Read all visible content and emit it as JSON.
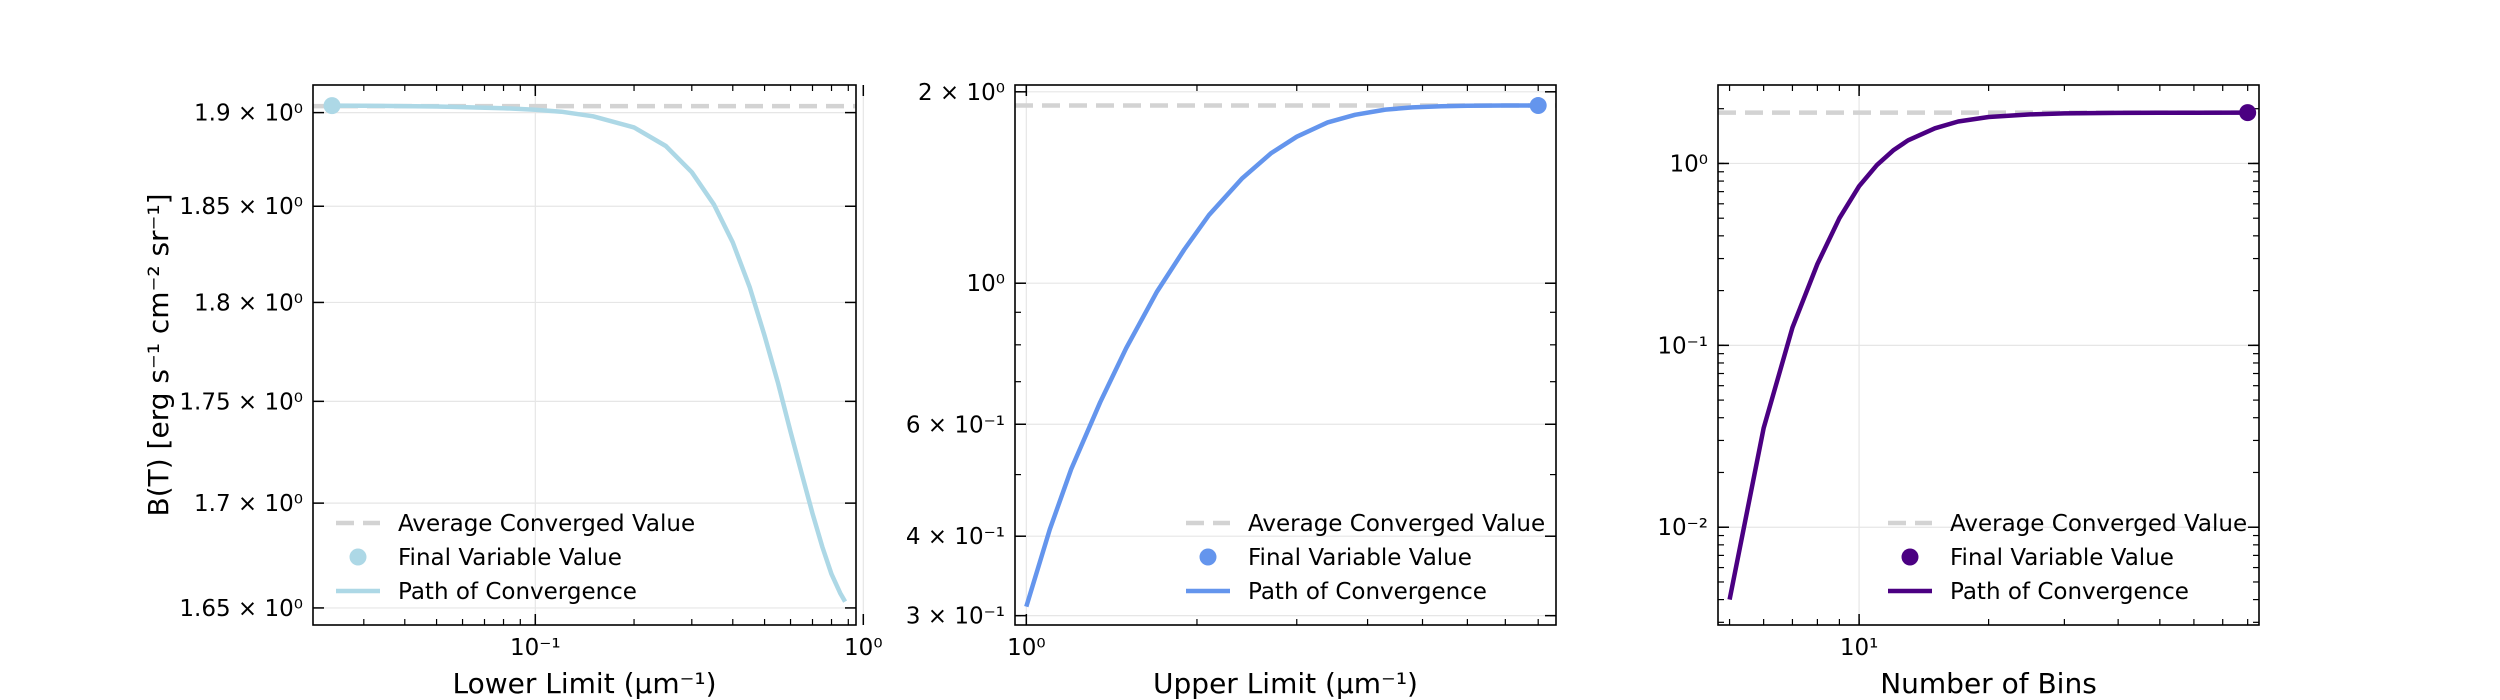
{
  "chart_data": [
    {
      "type": "line",
      "xlabel": "Lower Limit (μm⁻¹)",
      "ylabel": "B(T) [erg s⁻¹ cm⁻² sr⁻¹]",
      "xscale": "log",
      "yscale": "log",
      "xlim": [
        0.021,
        0.95
      ],
      "ylim": [
        1.642,
        1.915
      ],
      "grid": true,
      "legend_position": "bottom-left",
      "color": "#add8e6",
      "xticks": [
        {
          "value": 0.1,
          "label": "10⁻¹"
        },
        {
          "value": 1,
          "label": "10⁰"
        }
      ],
      "yticks": [
        {
          "value": 1.65,
          "label": "1.65 × 10⁰"
        },
        {
          "value": 1.7,
          "label": "1.7 × 10⁰"
        },
        {
          "value": 1.75,
          "label": "1.75 × 10⁰"
        },
        {
          "value": 1.8,
          "label": "1.8 × 10⁰"
        },
        {
          "value": 1.85,
          "label": "1.85 × 10⁰"
        },
        {
          "value": 1.9,
          "label": "1.9 × 10⁰"
        }
      ],
      "average_converged_value": 1.9035,
      "final_point": {
        "x": 0.024,
        "y": 1.9038
      },
      "series": [
        {
          "x": [
            0.024,
            0.03,
            0.04,
            0.05,
            0.06,
            0.08,
            0.1,
            0.12,
            0.15,
            0.2,
            0.25,
            0.3,
            0.35,
            0.4,
            0.45,
            0.5,
            0.55,
            0.6,
            0.65,
            0.7,
            0.75,
            0.8,
            0.85,
            0.88
          ],
          "y": [
            1.9038,
            1.9037,
            1.9035,
            1.9033,
            1.903,
            1.9024,
            1.9016,
            1.9005,
            1.898,
            1.892,
            1.882,
            1.868,
            1.851,
            1.831,
            1.808,
            1.783,
            1.759,
            1.735,
            1.714,
            1.695,
            1.679,
            1.666,
            1.657,
            1.653
          ]
        }
      ],
      "legend": [
        "Average Converged Value",
        "Final Variable Value",
        "Path of Convergence"
      ]
    },
    {
      "type": "line",
      "xlabel": "Upper Limit (μm⁻¹)",
      "ylabel": "",
      "xscale": "log",
      "yscale": "log",
      "xlim": [
        0.955,
        8.6
      ],
      "ylim": [
        0.29,
        2.05
      ],
      "grid": true,
      "legend_position": "bottom-right",
      "color": "#6495ed",
      "xticks": [
        {
          "value": 1,
          "label": "10⁰"
        }
      ],
      "yticks": [
        {
          "value": 0.3,
          "label": "3 × 10⁻¹"
        },
        {
          "value": 0.4,
          "label": "4 × 10⁻¹"
        },
        {
          "value": 0.6,
          "label": "6 × 10⁻¹"
        },
        {
          "value": 1,
          "label": "10⁰"
        },
        {
          "value": 2,
          "label": "2 × 10⁰"
        }
      ],
      "average_converged_value": 1.903,
      "final_point": {
        "x": 8.0,
        "y": 1.903
      },
      "series": [
        {
          "x": [
            1.0,
            1.1,
            1.2,
            1.35,
            1.5,
            1.7,
            1.9,
            2.1,
            2.4,
            2.7,
            3.0,
            3.4,
            3.8,
            4.3,
            4.8,
            5.4,
            6.0,
            7.0,
            8.0
          ],
          "y": [
            0.31,
            0.41,
            0.51,
            0.65,
            0.79,
            0.97,
            1.13,
            1.28,
            1.46,
            1.6,
            1.7,
            1.79,
            1.84,
            1.875,
            1.89,
            1.898,
            1.901,
            1.903,
            1.903
          ]
        }
      ],
      "legend": [
        "Average Converged Value",
        "Final Variable Value",
        "Path of Convergence"
      ]
    },
    {
      "type": "line",
      "xlabel": "Number of Bins",
      "ylabel": "",
      "xscale": "log",
      "yscale": "log",
      "xlim": [
        4.7,
        85
      ],
      "ylim": [
        0.0029,
        2.7
      ],
      "grid": true,
      "legend_position": "bottom-right",
      "color": "#4b0082",
      "xticks": [
        {
          "value": 10,
          "label": "10¹"
        }
      ],
      "yticks": [
        {
          "value": 0.01,
          "label": "10⁻²"
        },
        {
          "value": 0.1,
          "label": "10⁻¹"
        },
        {
          "value": 1,
          "label": "10⁰"
        }
      ],
      "average_converged_value": 1.903,
      "final_point": {
        "x": 80,
        "y": 1.903
      },
      "series": [
        {
          "x": [
            5,
            6,
            7,
            8,
            9,
            10,
            11,
            12,
            13,
            15,
            17,
            20,
            25,
            30,
            40,
            50,
            60,
            80
          ],
          "y": [
            0.004,
            0.035,
            0.125,
            0.28,
            0.5,
            0.75,
            0.98,
            1.18,
            1.34,
            1.56,
            1.7,
            1.8,
            1.86,
            1.885,
            1.897,
            1.901,
            1.902,
            1.903
          ]
        }
      ],
      "legend": [
        "Average Converged Value",
        "Final Variable Value",
        "Path of Convergence"
      ]
    }
  ]
}
